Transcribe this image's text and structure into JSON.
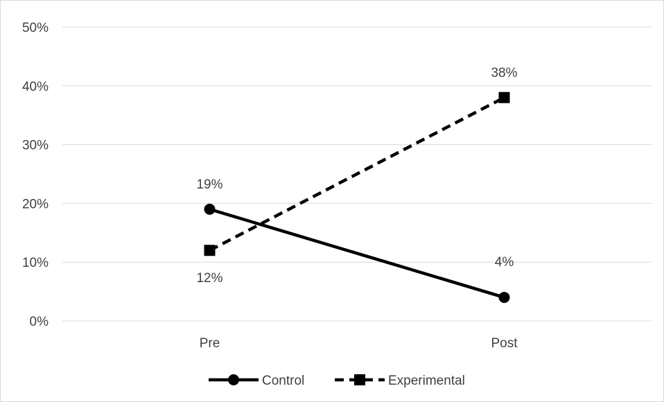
{
  "chart_data": {
    "type": "line",
    "title": "",
    "xlabel": "",
    "ylabel": "",
    "categories": [
      "Pre",
      "Post"
    ],
    "ylim": [
      0,
      50
    ],
    "yticks": [
      0,
      10,
      20,
      30,
      40,
      50
    ],
    "ytick_labels": [
      "0%",
      "10%",
      "20%",
      "30%",
      "40%",
      "50%"
    ],
    "grid": true,
    "legend_position": "bottom",
    "series": [
      {
        "name": "Control",
        "values": [
          19,
          4
        ],
        "value_labels": [
          "19%",
          "4%"
        ],
        "marker": "circle",
        "line_style": "solid",
        "color": "#000000"
      },
      {
        "name": "Experimental",
        "values": [
          12,
          38
        ],
        "value_labels": [
          "12%",
          "38%"
        ],
        "marker": "square",
        "line_style": "dashed",
        "color": "#000000"
      }
    ]
  }
}
